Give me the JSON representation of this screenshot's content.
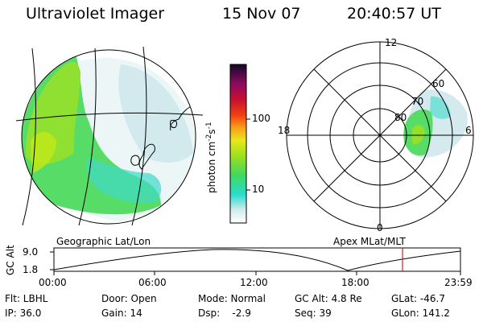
{
  "header": {
    "title": "Ultraviolet Imager",
    "date": "15 Nov 07",
    "time": "20:40:57 UT"
  },
  "colorbar": {
    "unit_label": "photon cm",
    "unit_exp1": "-2",
    "unit_s": "s",
    "unit_exp2": "-1",
    "tick_labels": [
      "100",
      "10"
    ]
  },
  "polar_plot": {
    "mlt_labels": {
      "top": "12",
      "left": "18",
      "right": "6",
      "bottom": "0"
    },
    "lat_labels": [
      "60",
      "70",
      "80"
    ]
  },
  "orbit_panel": {
    "left_title": "Geographic Lat/Lon",
    "right_title": "Apex MLat/MLT",
    "y_axis_label": "GC Alt",
    "y_ticks": [
      "9.0",
      "1.8"
    ],
    "x_ticks": [
      "00:00",
      "06:00",
      "12:00",
      "18:00",
      "23:59"
    ],
    "marker_color": "#cc2222"
  },
  "info_row1": {
    "flt": "Flt: LBHL",
    "door": "Door: Open",
    "mode": "Mode: Normal",
    "gc_alt": "GC Alt: 4.8 Re",
    "glat": "GLat: -46.7"
  },
  "info_row2": {
    "ip": "IP: 36.0",
    "gain": "Gain: 14",
    "dsp": "Dsp:    -2.9",
    "seq": "Seq: 39",
    "glon": "GLon: 141.2"
  }
}
